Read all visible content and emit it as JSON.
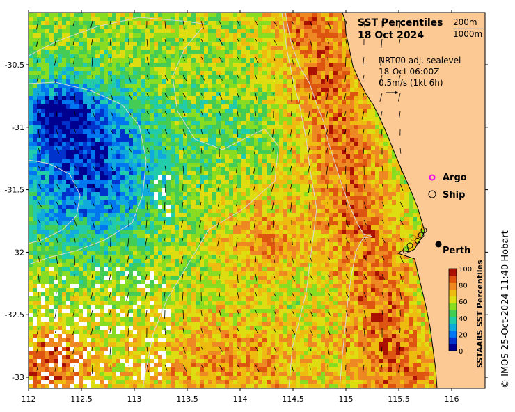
{
  "title": {
    "line1": "SST Percentiles",
    "line2": "18 Oct 2024"
  },
  "contours": {
    "label_200": "200m",
    "label_1000": "1000m"
  },
  "currents": {
    "source": "NRT00 adj. sealevel",
    "time": "18-Oct 06:00Z",
    "scale": "0.5m/s (1kt 6h)"
  },
  "legend": {
    "argo": "Argo",
    "ship": "Ship"
  },
  "places": {
    "perth": "Perth"
  },
  "colorbar": {
    "label": "SSTAARS SST Percentiles",
    "ticks": [
      "100",
      "80",
      "60",
      "40",
      "20",
      "0"
    ],
    "colors": [
      "#000090",
      "#0033cc",
      "#0077ee",
      "#11aadd",
      "#22ccaa",
      "#44cc55",
      "#88dd22",
      "#dddd11",
      "#eebb11",
      "#ee8822",
      "#dd5511",
      "#aa1100"
    ]
  },
  "axes": {
    "x_ticks": [
      "112",
      "112.5",
      "113",
      "113.5",
      "114",
      "114.5",
      "115",
      "115.5",
      "116"
    ],
    "y_ticks": [
      "-30.5",
      "-31",
      "-31.5",
      "-32",
      "-32.5",
      "-33"
    ]
  },
  "credit": "© IMOS 25-Oct-2024 11:40 Hobart",
  "colors": {
    "land": "#fcc995",
    "coast": "#000000",
    "contour": "#d8d8d8"
  }
}
